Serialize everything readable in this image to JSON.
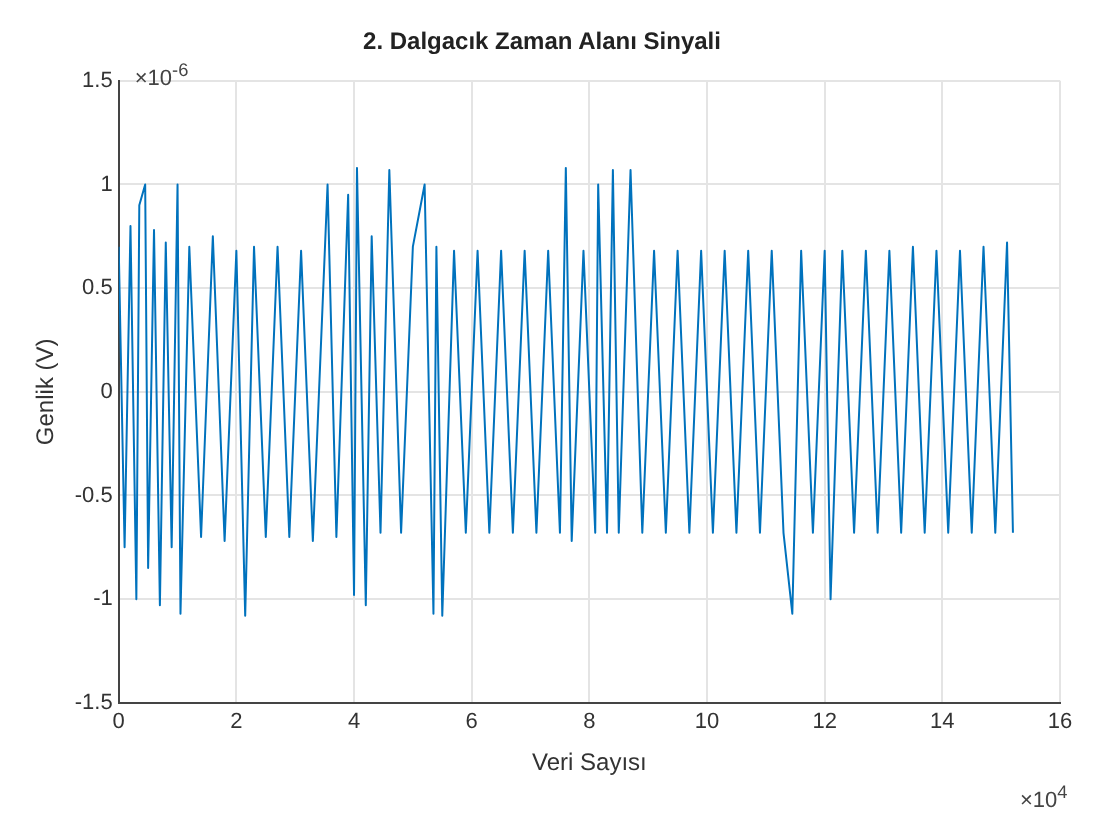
{
  "chart_data": {
    "type": "line",
    "title": "2. Dalgacık Zaman Alanı Sinyali",
    "xlabel": "Veri Sayısı",
    "ylabel": "Genlik (V)",
    "annotations": [
      "×10$^{-6}$",
      "×10$^{4}$"
    ],
    "xlim": [
      0,
      16
    ],
    "xticks": [
      0,
      2,
      4,
      6,
      8,
      10,
      12,
      14,
      16
    ],
    "ylim": [
      -1.5,
      1.5
    ],
    "yticks": [
      -1.5,
      -1,
      -0.5,
      0,
      0.5,
      1,
      1.5
    ],
    "grid": true,
    "legend": false,
    "marker": "none",
    "line_style": "solid",
    "series": [
      {
        "color": "#0072bd",
        "x": [
          0,
          0.1,
          0.2,
          0.3,
          0.35,
          0.45,
          0.5,
          0.6,
          0.7,
          0.8,
          0.9,
          1.0,
          1.05,
          1.2,
          1.4,
          1.6,
          1.8,
          2.0,
          2.15,
          2.3,
          2.5,
          2.7,
          2.9,
          3.1,
          3.3,
          3.55,
          3.7,
          3.9,
          4.0,
          4.05,
          4.2,
          4.3,
          4.45,
          4.6,
          4.8,
          5.0,
          5.2,
          5.35,
          5.4,
          5.5,
          5.7,
          5.9,
          6.1,
          6.3,
          6.5,
          6.7,
          6.9,
          7.1,
          7.3,
          7.5,
          7.6,
          7.7,
          7.9,
          8.1,
          8.15,
          8.3,
          8.4,
          8.5,
          8.7,
          8.9,
          9.1,
          9.3,
          9.5,
          9.7,
          9.9,
          10.1,
          10.3,
          10.5,
          10.7,
          10.9,
          11.1,
          11.3,
          11.45,
          11.6,
          11.8,
          12.0,
          12.1,
          12.3,
          12.5,
          12.7,
          12.9,
          13.1,
          13.3,
          13.5,
          13.7,
          13.9,
          14.1,
          14.3,
          14.5,
          14.7,
          14.9,
          15.1,
          15.2
        ],
        "values": [
          0.7,
          -0.75,
          0.8,
          -1.0,
          0.9,
          1.0,
          -0.85,
          0.78,
          -1.03,
          0.72,
          -0.75,
          1.0,
          -1.07,
          0.7,
          -0.7,
          0.75,
          -0.72,
          0.68,
          -1.08,
          0.7,
          -0.7,
          0.7,
          -0.7,
          0.68,
          -0.72,
          1.0,
          -0.7,
          0.95,
          -0.98,
          1.08,
          -1.03,
          0.75,
          -0.68,
          1.07,
          -0.68,
          0.7,
          1.0,
          -1.07,
          0.7,
          -1.08,
          0.68,
          -0.68,
          0.68,
          -0.68,
          0.68,
          -0.68,
          0.68,
          -0.68,
          0.68,
          -0.68,
          1.08,
          -0.72,
          0.68,
          -0.68,
          1.0,
          -0.68,
          1.07,
          -0.68,
          1.07,
          -0.68,
          0.68,
          -0.68,
          0.68,
          -0.68,
          0.68,
          -0.68,
          0.68,
          -0.68,
          0.68,
          -0.68,
          0.68,
          -0.68,
          -1.07,
          0.68,
          -0.68,
          0.68,
          -1.0,
          0.68,
          -0.68,
          0.68,
          -0.68,
          0.68,
          -0.68,
          0.7,
          -0.68,
          0.68,
          -0.68,
          0.68,
          -0.68,
          0.7,
          -0.68,
          0.72,
          -0.68
        ]
      }
    ]
  }
}
